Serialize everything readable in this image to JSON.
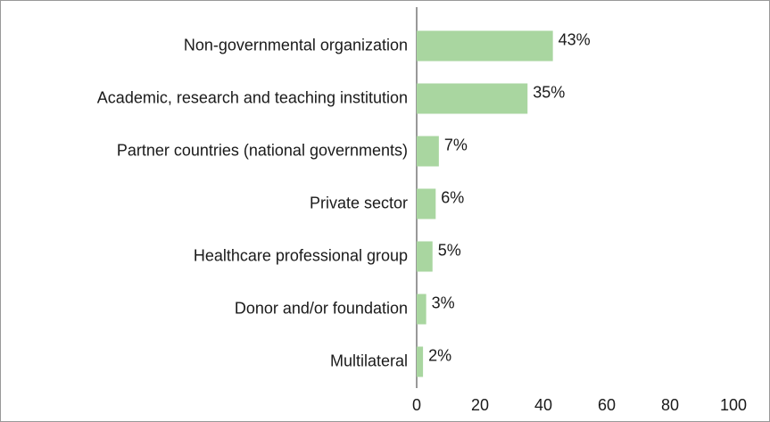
{
  "chart_data": {
    "type": "hbar",
    "categories": [
      "Non-governmental organization",
      "Academic, research and teaching institution",
      "Partner countries (national governments)",
      "Private sector",
      "Healthcare professional group",
      "Donor and/or foundation",
      "Multilateral"
    ],
    "values": [
      43,
      35,
      7,
      6,
      5,
      3,
      2
    ],
    "value_labels": [
      "43%",
      "35%",
      "7%",
      "6%",
      "5%",
      "3%",
      "2%"
    ],
    "color": "#a9d6a0",
    "xlim": [
      0,
      100
    ],
    "xticks": [
      0,
      20,
      40,
      60,
      80,
      100
    ],
    "grid": false
  }
}
